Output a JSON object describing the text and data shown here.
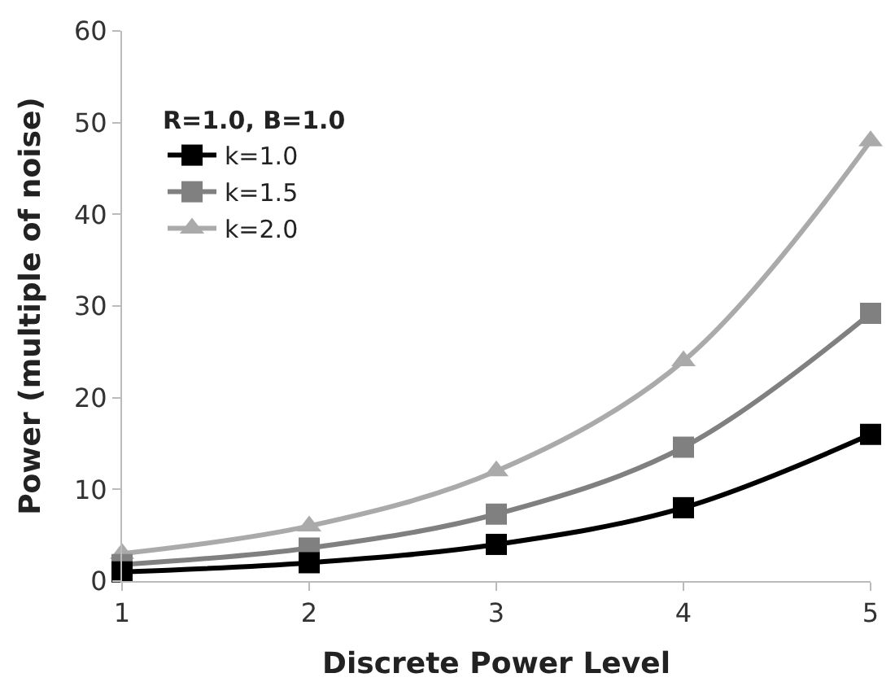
{
  "chart_data": {
    "type": "line",
    "xlabel": "Discrete Power Level",
    "ylabel": "Power (multiple of noise)",
    "legend_title": "R=1.0, B=1.0",
    "x": [
      1,
      2,
      3,
      4,
      5
    ],
    "series": [
      {
        "name": "k=1.0",
        "color": "#000000",
        "marker": "square",
        "values": [
          1,
          2,
          4,
          8,
          16
        ]
      },
      {
        "name": "k=1.5",
        "color": "#808080",
        "marker": "square",
        "values": [
          1.8,
          3.6,
          7.3,
          14.6,
          29.2
        ]
      },
      {
        "name": "k=2.0",
        "color": "#aaaaaa",
        "marker": "triangle",
        "values": [
          3,
          6,
          12,
          24,
          48
        ]
      }
    ],
    "xlim": [
      1,
      5
    ],
    "xticks": [
      1,
      2,
      3,
      4,
      5
    ],
    "ylim": [
      0,
      60
    ],
    "yticks": [
      0,
      10,
      20,
      30,
      40,
      50,
      60
    ],
    "legend": "top left",
    "line_style": "solid"
  }
}
